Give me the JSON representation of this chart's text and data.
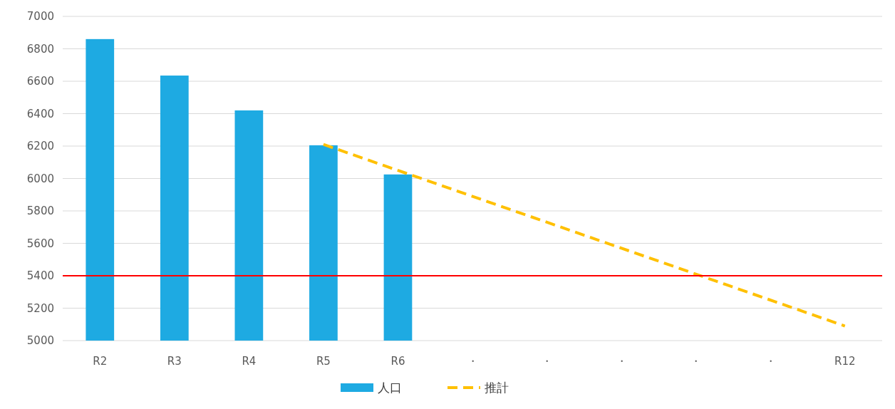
{
  "chart_data": {
    "type": "bar",
    "categories": [
      "R2",
      "R3",
      "R4",
      "R5",
      "R6",
      "・",
      "・",
      "・",
      "・",
      "・",
      "R12"
    ],
    "series": [
      {
        "name": "人口",
        "color": "#1eaae2",
        "values": [
          6860,
          6635,
          6420,
          6205,
          6025,
          null,
          null,
          null,
          null,
          null,
          null
        ]
      },
      {
        "name": "推計",
        "type": "line",
        "color": "#ffc000",
        "line_style": "dashed",
        "marker": "none",
        "values": [
          null,
          null,
          null,
          6210,
          null,
          null,
          null,
          null,
          null,
          null,
          5090
        ]
      }
    ],
    "ylim": [
      5000,
      7000
    ],
    "yticks": [
      5000,
      5200,
      5400,
      5600,
      5800,
      6000,
      6200,
      6400,
      6600,
      6800,
      7000
    ],
    "grid": "y",
    "legend": "bottom",
    "ref_lines": [
      {
        "axis": "y",
        "value": 5400,
        "color": "#ff0000"
      }
    ]
  }
}
